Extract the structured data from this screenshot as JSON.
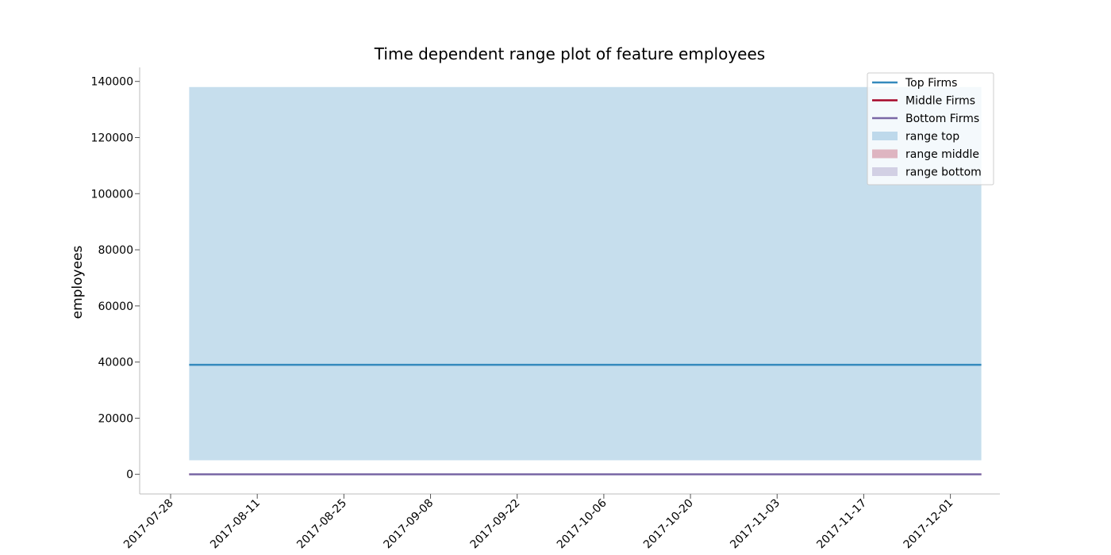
{
  "chart_data": {
    "type": "line",
    "title": "Time dependent range plot of feature employees",
    "xlabel": "",
    "ylabel": "employees",
    "xlim": [
      "2017-07-23",
      "2017-12-09"
    ],
    "ylim": [
      -7000,
      145000
    ],
    "x_ticks": [
      "2017-07-28",
      "2017-08-11",
      "2017-08-25",
      "2017-09-08",
      "2017-09-22",
      "2017-10-06",
      "2017-10-20",
      "2017-11-03",
      "2017-11-17",
      "2017-12-01"
    ],
    "y_ticks": [
      0,
      20000,
      40000,
      60000,
      80000,
      100000,
      120000,
      140000
    ],
    "y_tick_labels": [
      "0",
      "20000",
      "40000",
      "60000",
      "80000",
      "100000",
      "120000",
      "140000"
    ],
    "x_range": [
      "2017-07-31",
      "2017-12-06"
    ],
    "series": [
      {
        "name": "Top Firms",
        "color": "#348ABD",
        "values": [
          39000,
          39000
        ]
      },
      {
        "name": "Middle Firms",
        "color": "#A60628",
        "values": [
          0,
          0
        ]
      },
      {
        "name": "Bottom Firms",
        "color": "#7A68A6",
        "values": [
          0,
          0
        ]
      }
    ],
    "ranges": [
      {
        "name": "range top",
        "color": "#348ABD",
        "opacity": 0.28,
        "low": 5000,
        "high": 138000
      },
      {
        "name": "range middle",
        "color": "#A60628",
        "opacity": 0.28,
        "low": 0,
        "high": 0
      },
      {
        "name": "range bottom",
        "color": "#7A68A6",
        "opacity": 0.28,
        "low": 0,
        "high": 0
      }
    ],
    "grid": false,
    "legend_position": "top-right",
    "legend": [
      "Top Firms",
      "Middle Firms",
      "Bottom Firms",
      "range top",
      "range middle",
      "range bottom"
    ]
  }
}
